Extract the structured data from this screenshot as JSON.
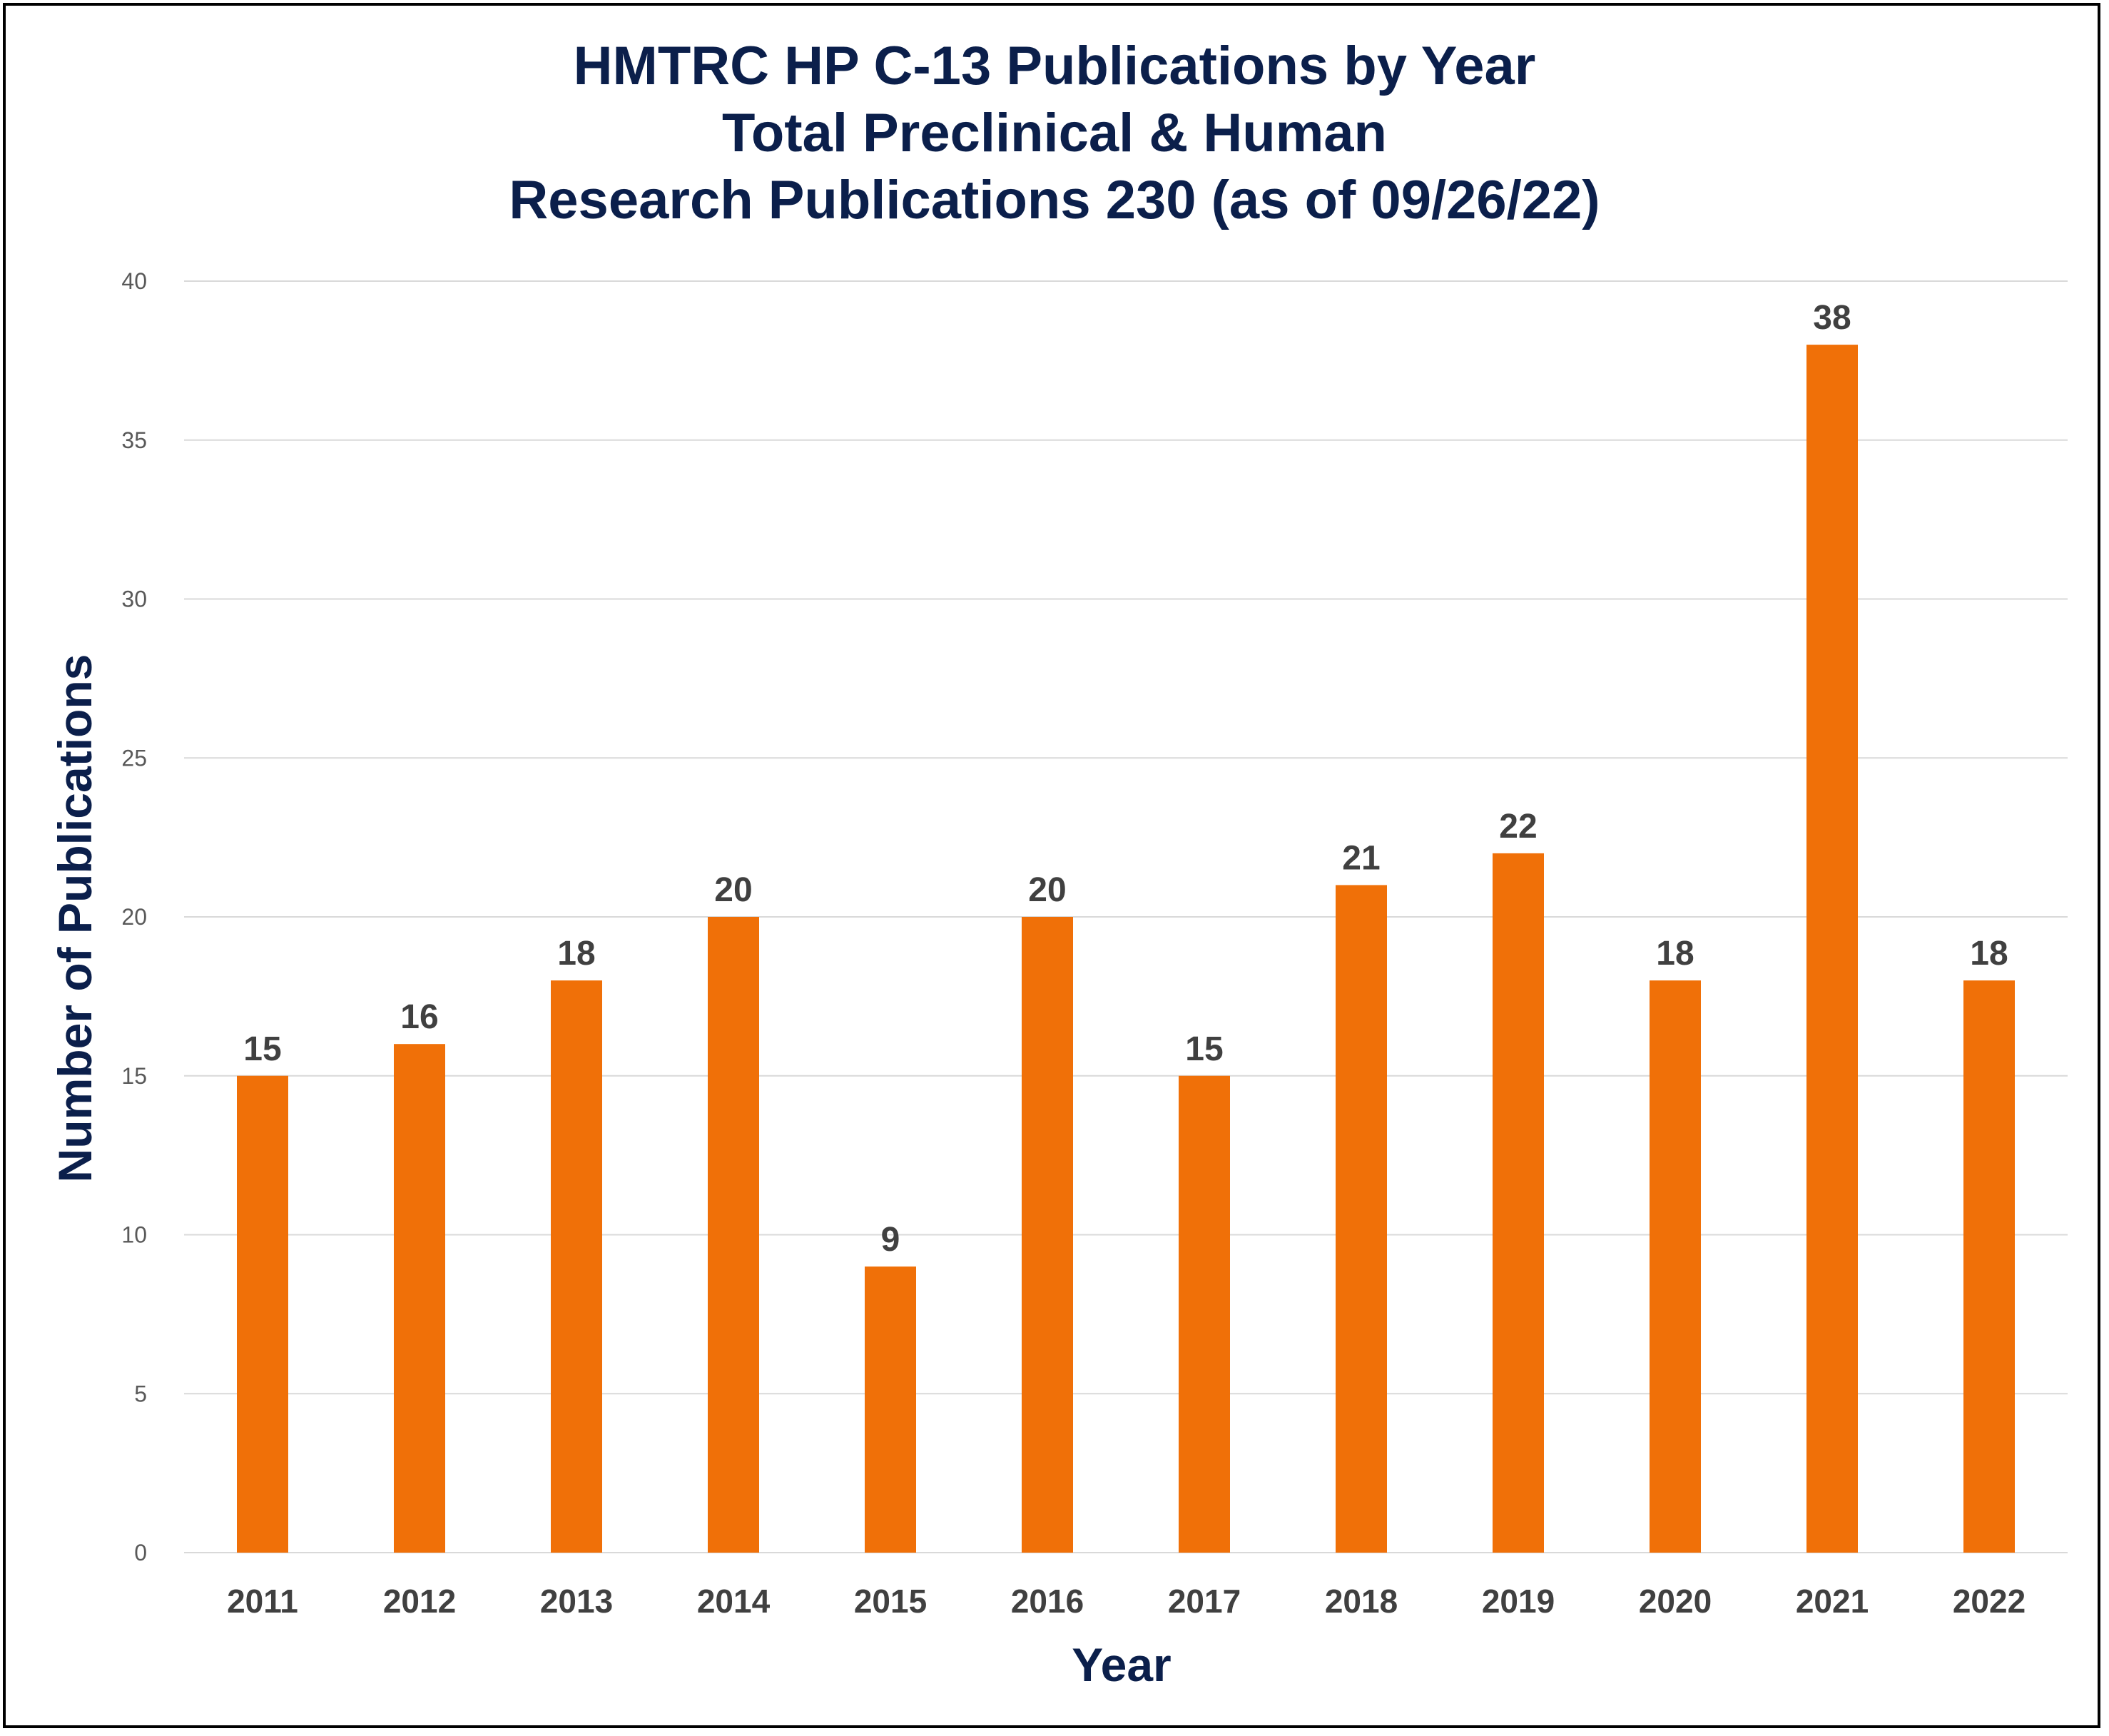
{
  "chart_data": {
    "type": "bar",
    "title": [
      "HMTRC HP C-13 Publications by Year",
      "Total Preclinical & Human",
      "Research Publications 230 (as of 09/26/22)"
    ],
    "xlabel": "Year",
    "ylabel": "Number of Publications",
    "categories": [
      "2011",
      "2012",
      "2013",
      "2014",
      "2015",
      "2016",
      "2017",
      "2018",
      "2019",
      "2020",
      "2021",
      "2022"
    ],
    "values": [
      15,
      16,
      18,
      20,
      9,
      20,
      15,
      21,
      22,
      18,
      38,
      18
    ],
    "ylim": [
      0,
      40
    ],
    "yticks": [
      "0",
      "5",
      "10",
      "15",
      "20",
      "25",
      "30",
      "35",
      "40"
    ],
    "grid": true,
    "legend": "none",
    "colors": {
      "bar": "#F07008",
      "title": "#0B1F4B",
      "gridline": "#D9D9D9"
    }
  }
}
